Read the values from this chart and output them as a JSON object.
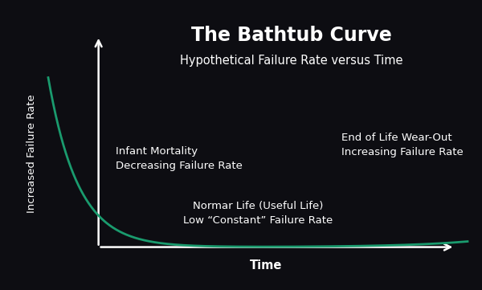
{
  "title": "The Bathtub Curve",
  "subtitle": "Hypothetical Failure Rate versus Time",
  "ylabel": "Increased Failure Rate",
  "xlabel": "Time",
  "background_color": "#0d0d12",
  "curve_color": "#1a9b6e",
  "text_color": "#ffffff",
  "arrow_color": "#ffffff",
  "curve_linewidth": 2.0,
  "annotation_infant": "Infant Mortality\nDecreasing Failure Rate",
  "annotation_normal": "Normar Life (Useful Life)\nLow “Constant” Failure Rate",
  "annotation_eol": "End of Life Wear-Out\nIncreasing Failure Rate",
  "title_fontsize": 17,
  "subtitle_fontsize": 10.5,
  "label_fontsize": 9.5,
  "annotation_fontsize": 9.5
}
